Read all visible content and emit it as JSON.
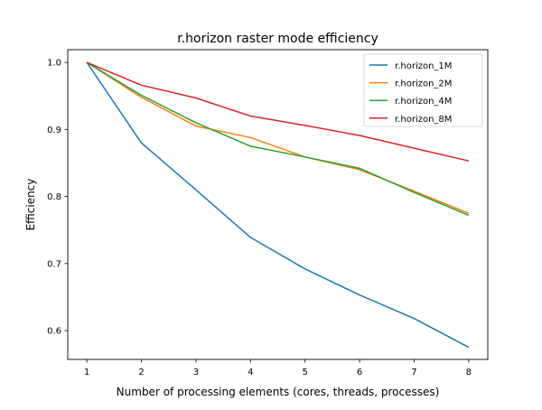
{
  "chart_data": {
    "type": "line",
    "title": "r.horizon raster mode efficiency",
    "xlabel": "Number of processing elements (cores, threads, processes)",
    "ylabel": "Efficiency",
    "x": [
      1,
      2,
      3,
      4,
      5,
      6,
      7,
      8
    ],
    "xlim": [
      0.65,
      8.35
    ],
    "ylim": [
      0.557,
      1.019
    ],
    "xticks": [
      "1",
      "2",
      "3",
      "4",
      "5",
      "6",
      "7",
      "8"
    ],
    "yticks": [
      "0.6",
      "0.7",
      "0.8",
      "0.9",
      "1.0"
    ],
    "ytick_values": [
      0.6,
      0.7,
      0.8,
      0.9,
      1.0
    ],
    "grid": false,
    "legend_position": "top-right",
    "series": [
      {
        "name": "r.horizon_1M",
        "color": "#1f77b4",
        "values": [
          1.0,
          0.88,
          0.81,
          0.739,
          0.692,
          0.653,
          0.618,
          0.575
        ]
      },
      {
        "name": "r.horizon_2M",
        "color": "#ff7f0e",
        "values": [
          1.0,
          0.948,
          0.905,
          0.888,
          0.859,
          0.84,
          0.808,
          0.775
        ]
      },
      {
        "name": "r.horizon_4M",
        "color": "#2ca02c",
        "values": [
          1.0,
          0.951,
          0.91,
          0.875,
          0.859,
          0.842,
          0.806,
          0.772
        ]
      },
      {
        "name": "r.horizon_8M",
        "color": "#d62728",
        "values": [
          1.0,
          0.966,
          0.947,
          0.92,
          0.906,
          0.891,
          0.872,
          0.853
        ]
      }
    ]
  }
}
